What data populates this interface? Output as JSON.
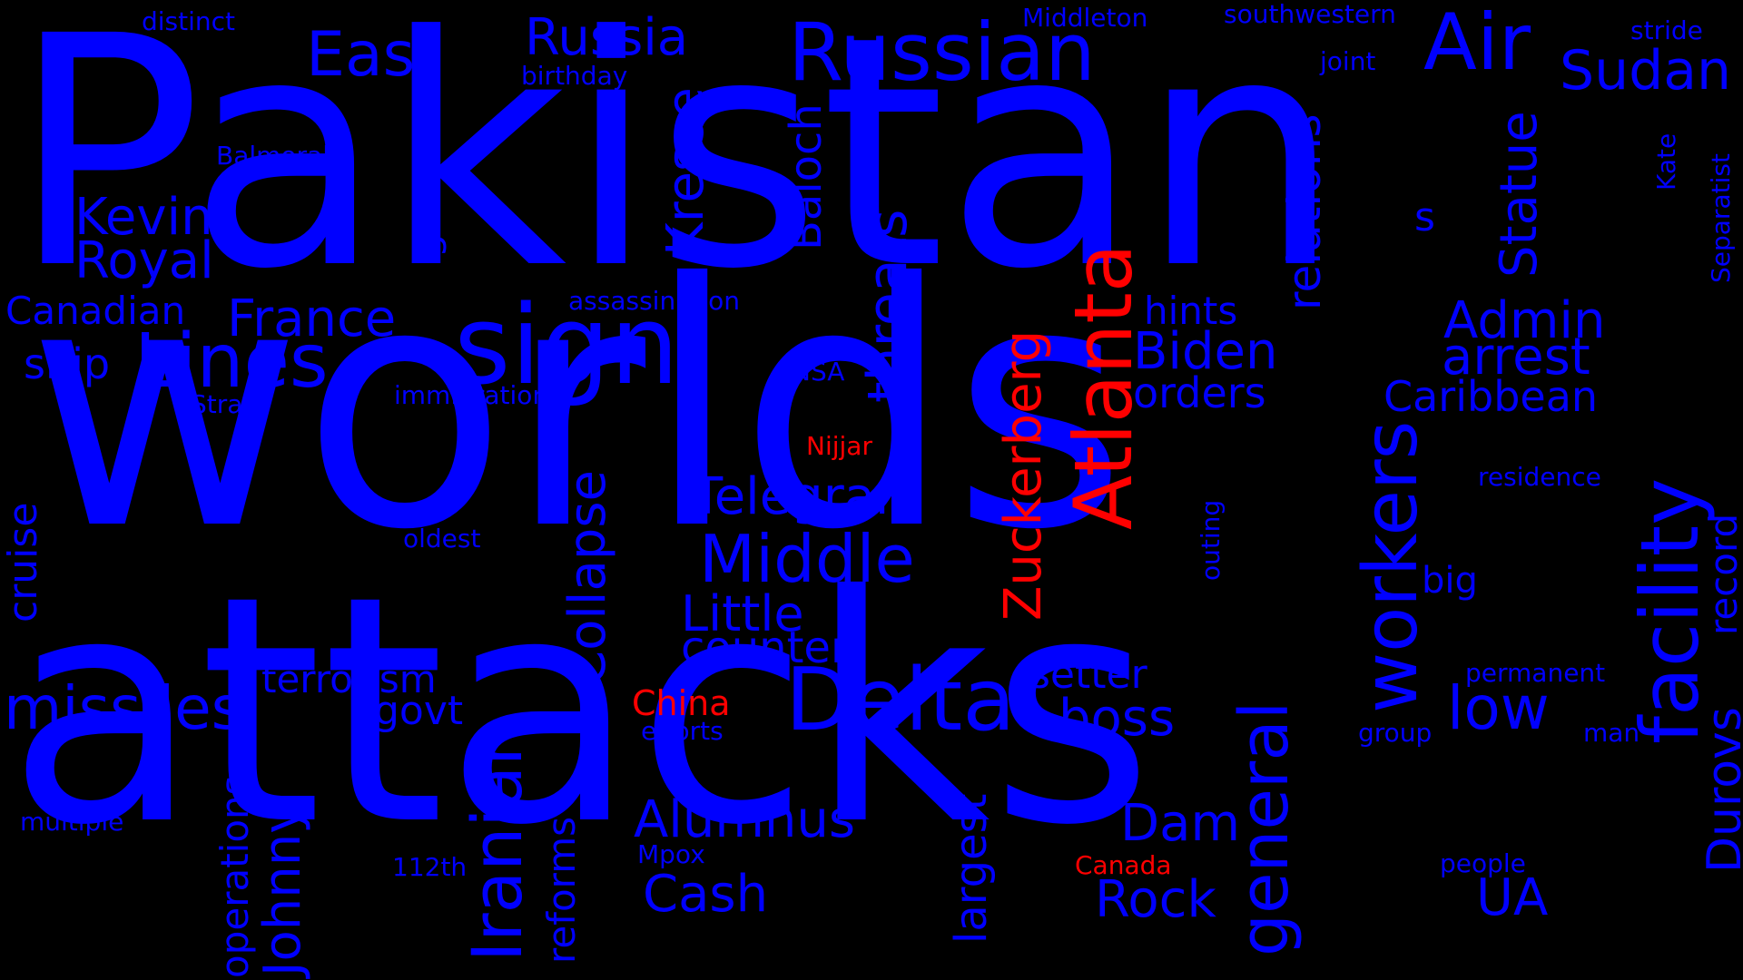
{
  "colors": {
    "background": "#000000",
    "primary": "#0000ff",
    "highlight": "#ff0000"
  },
  "words": {
    "pakistan": "Pakistan",
    "worlds": "worlds",
    "attacks": "attacks",
    "atlanta": "Atlanta",
    "sign": "sign",
    "russian": "Russian",
    "russia": "Russia",
    "air": "Air",
    "east": "East",
    "lines": "Lines",
    "delta": "Delta",
    "threats": "threats",
    "workers": "workers",
    "facility": "facility",
    "iranian": "Iranian",
    "general": "general",
    "zuckerberg": "Zuckerberg",
    "middle": "Middle",
    "telegram": "Telegram",
    "kevin": "Kevin",
    "royal": "Royal",
    "france": "France",
    "missiles": "missiles",
    "collapse": "Collapse",
    "kresse": "Kresse",
    "baloch": "Baloch",
    "relations": "relations",
    "statue": "Statue",
    "sudan": "Sudan",
    "admin": "Admin",
    "arrest": "arrest",
    "biden": "Biden",
    "orders": "orders",
    "caribbean": "Caribbean",
    "little": "Little",
    "counter": "counter",
    "alumnus": "Alumnus",
    "cash": "Cash",
    "low": "low",
    "boss": "boss",
    "setter": "setter",
    "dam": "Dam",
    "rock": "Rock",
    "johnny": "Johnny",
    "durovs": "Durovs",
    "record": "record",
    "gunmen": "gunmen",
    "cruise": "cruise",
    "ship": "ship",
    "canadian": "Canadian",
    "terrorism": "terrorism",
    "govt": "govt",
    "hints": "hints",
    "s": "s",
    "largest": "largest",
    "ua": "UA",
    "operations": "operations",
    "reforms": "reforms",
    "china": "China",
    "nijjar": "Nijjar",
    "canada": "Canada",
    "distinct": "distinct",
    "birthday": "birthday",
    "middleton": "Middleton",
    "southwestern": "southwestern",
    "stride": "stride",
    "joint": "joint",
    "balmoral": "Balmoral",
    "assassination": "assassination",
    "immigration": "immigration",
    "strain": "Strain",
    "nsa": "NSA",
    "oldest": "oldest",
    "outing": "outing",
    "residence": "residence",
    "big": "big",
    "permanent": "permanent",
    "efforts": "efforts",
    "group": "group",
    "man": "man",
    "multiple": "multiple",
    "mpox": "Mpox",
    "112th": "112th",
    "people": "people",
    "kate": "Kate",
    "separatist": "Separatist"
  }
}
